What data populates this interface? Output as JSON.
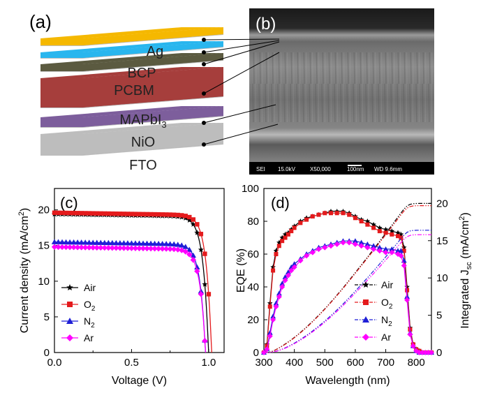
{
  "panels": {
    "a": "(a)",
    "b": "(b)",
    "c": "(c)",
    "d": "(d)"
  },
  "layers": [
    "Ag",
    "BCP",
    "PCBM",
    "MAPbI",
    "NiO",
    "FTO"
  ],
  "layer_sub": "3",
  "layer_colors": {
    "Ag": "#f5b800",
    "BCP": "#29b6ee",
    "PCBM": "#5b5a40",
    "MAPbI": "#a63e3c",
    "NiO": "#7d5e9c",
    "FTO": "#bdbdbd"
  },
  "sem": {
    "mode": "SEI",
    "voltage": "15.0kV",
    "magnification": "X50,000",
    "scale": "100nm",
    "wd": "WD 9.6mm"
  },
  "chart_data": [
    {
      "type": "line",
      "panel": "(c)",
      "xlabel": "Voltage (V)",
      "ylabel": "Current density (mA/cm",
      "ylabel_sup": "2",
      "ylabel_end": ")",
      "xlim": [
        0,
        1.1
      ],
      "ylim": [
        0,
        23
      ],
      "xticks": [
        "0.0",
        "0.5",
        "1.0"
      ],
      "yticks": [
        "0",
        "5",
        "10",
        "15",
        "20"
      ],
      "legend": [
        {
          "name": "Air",
          "sub": "",
          "color": "#000000",
          "marker": "star"
        },
        {
          "name": "O",
          "sub": "2",
          "color": "#e41a1c",
          "marker": "square"
        },
        {
          "name": "N",
          "sub": "2",
          "color": "#1f1fd6",
          "marker": "triangle"
        },
        {
          "name": "Ar",
          "sub": "",
          "color": "#ff00ff",
          "marker": "diamond"
        }
      ],
      "series": [
        {
          "name": "Air",
          "jsc": 19.4,
          "voc": 1.0
        },
        {
          "name": "O2",
          "jsc": 19.6,
          "voc": 1.02
        },
        {
          "name": "N2",
          "jsc": 15.5,
          "voc": 0.98
        },
        {
          "name": "Ar",
          "jsc": 14.8,
          "voc": 0.98
        }
      ]
    },
    {
      "type": "line",
      "panel": "(d)",
      "xlabel": "Wavelength (nm)",
      "ylabel": "EQE (%)",
      "y2label": "Integrated J",
      "y2label_sub": "sc",
      "y2label_mid": " (mA/cm",
      "y2label_sup": "2",
      "y2label_end": ")",
      "xlim": [
        300,
        850
      ],
      "ylim": [
        0,
        100
      ],
      "y2lim": [
        0,
        22
      ],
      "xticks": [
        "300",
        "400",
        "500",
        "600",
        "700",
        "800"
      ],
      "yticks": [
        "0",
        "20",
        "40",
        "60",
        "80",
        "100"
      ],
      "y2ticks": [
        "0",
        "5",
        "10",
        "15",
        "20"
      ],
      "legend": [
        {
          "name": "Air",
          "sub": "",
          "color": "#000000",
          "marker": "star"
        },
        {
          "name": "O",
          "sub": "2",
          "color": "#e41a1c",
          "marker": "square"
        },
        {
          "name": "N",
          "sub": "2",
          "color": "#1f1fd6",
          "marker": "triangle"
        },
        {
          "name": "Ar",
          "sub": "",
          "color": "#ff00ff",
          "marker": "diamond"
        }
      ],
      "wavelengths": [
        300,
        310,
        320,
        330,
        340,
        350,
        360,
        370,
        380,
        390,
        400,
        420,
        440,
        460,
        480,
        500,
        520,
        540,
        560,
        580,
        600,
        620,
        640,
        660,
        680,
        700,
        720,
        740,
        750,
        760,
        770,
        780,
        790,
        800,
        810,
        820,
        830,
        840,
        850
      ],
      "series": [
        {
          "name": "Air",
          "eqe": [
            0,
            5,
            30,
            52,
            62,
            67,
            70,
            72,
            73,
            75,
            77,
            80,
            82,
            83,
            84,
            85,
            86,
            86,
            86,
            85,
            83,
            81,
            80,
            78,
            76,
            75,
            74,
            73,
            72,
            64,
            40,
            15,
            5,
            2,
            1,
            0,
            0,
            0,
            0
          ],
          "jsc_final": 20.0
        },
        {
          "name": "O2",
          "eqe": [
            0,
            4,
            28,
            50,
            60,
            65,
            68,
            70,
            72,
            74,
            76,
            79,
            81,
            83,
            84,
            85,
            85,
            85,
            85,
            84,
            82,
            80,
            78,
            76,
            74,
            73,
            72,
            71,
            70,
            62,
            38,
            14,
            5,
            2,
            1,
            0,
            0,
            0,
            0
          ],
          "jsc_final": 19.7
        },
        {
          "name": "N2",
          "eqe": [
            0,
            2,
            12,
            22,
            30,
            36,
            42,
            46,
            49,
            52,
            54,
            57,
            60,
            62,
            64,
            65,
            66,
            67,
            68,
            68,
            68,
            67,
            66,
            65,
            64,
            63,
            63,
            62,
            62,
            56,
            34,
            12,
            4,
            1,
            0,
            0,
            0,
            0,
            0
          ],
          "jsc_final": 16.4
        },
        {
          "name": "Ar",
          "eqe": [
            0,
            2,
            10,
            20,
            28,
            34,
            40,
            44,
            47,
            50,
            52,
            56,
            59,
            61,
            63,
            64,
            65,
            66,
            67,
            67,
            66,
            65,
            64,
            63,
            62,
            61,
            61,
            60,
            59,
            53,
            32,
            11,
            4,
            1,
            0,
            0,
            0,
            0,
            0
          ],
          "jsc_final": 15.8
        }
      ]
    }
  ]
}
